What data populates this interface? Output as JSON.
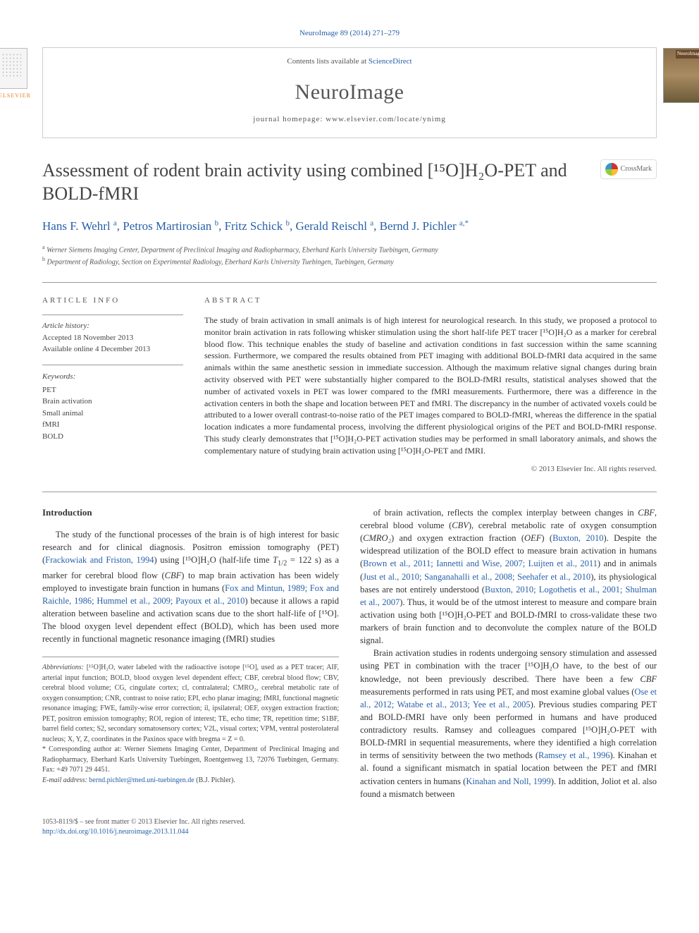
{
  "top_link": "NeuroImage 89 (2014) 271–279",
  "header": {
    "contents_prefix": "Contents lists available at ",
    "contents_link": "ScienceDirect",
    "journal": "NeuroImage",
    "homepage_label": "journal homepage: ",
    "homepage_url": "www.elsevier.com/locate/ynimg",
    "publisher_logo_label": "ELSEVIER",
    "cover_label": "NeuroImage"
  },
  "article": {
    "title": "Assessment of rodent brain activity using combined [¹⁵O]H₂O-PET and BOLD-fMRI",
    "crossmark": "CrossMark",
    "authors_html": "Hans F. Wehrl <sup>a</sup>, Petros Martirosian <sup>b</sup>, Fritz Schick <sup>b</sup>, Gerald Reischl <sup>a</sup>, Bernd J. Pichler <sup>a,*</sup>",
    "affiliations": [
      {
        "sup": "a",
        "text": "Werner Siemens Imaging Center, Department of Preclinical Imaging and Radiopharmacy, Eberhard Karls University Tuebingen, Germany"
      },
      {
        "sup": "b",
        "text": "Department of Radiology, Section on Experimental Radiology, Eberhard Karls University Tuebingen, Tuebingen, Germany"
      }
    ]
  },
  "meta": {
    "info_heading": "ARTICLE INFO",
    "abstract_heading": "ABSTRACT",
    "history_label": "Article history:",
    "history_lines": [
      "Accepted 18 November 2013",
      "Available online 4 December 2013"
    ],
    "keywords_label": "Keywords:",
    "keywords": [
      "PET",
      "Brain activation",
      "Small animal",
      "fMRI",
      "BOLD"
    ]
  },
  "abstract": {
    "text": "The study of brain activation in small animals is of high interest for neurological research. In this study, we proposed a protocol to monitor brain activation in rats following whisker stimulation using the short half-life PET tracer [¹⁵O]H₂O as a marker for cerebral blood flow. This technique enables the study of baseline and activation conditions in fast succession within the same scanning session. Furthermore, we compared the results obtained from PET imaging with additional BOLD-fMRI data acquired in the same animals within the same anesthetic session in immediate succession. Although the maximum relative signal changes during brain activity observed with PET were substantially higher compared to the BOLD-fMRI results, statistical analyses showed that the number of activated voxels in PET was lower compared to the fMRI measurements. Furthermore, there was a difference in the activation centers in both the shape and location between PET and fMRI. The discrepancy in the number of activated voxels could be attributed to a lower overall contrast-to-noise ratio of the PET images compared to BOLD-fMRI, whereas the difference in the spatial location indicates a more fundamental process, involving the different physiological origins of the PET and BOLD-fMRI response. This study clearly demonstrates that [¹⁵O]H₂O-PET activation studies may be performed in small laboratory animals, and shows the complementary nature of studying brain activation using [¹⁵O]H₂O-PET and fMRI.",
    "copyright": "© 2013 Elsevier Inc. All rights reserved."
  },
  "body": {
    "heading": "Introduction",
    "para1": "The study of the functional processes of the brain is of high interest for basic research and for clinical diagnosis. Positron emission tomography (PET) (Frackowiak and Friston, 1994) using [¹⁵O]H₂O (half-life time T₁/₂ = 122 s) as a marker for cerebral blood flow (CBF) to map brain activation has been widely employed to investigate brain function in humans (Fox and Mintun, 1989; Fox and Raichle, 1986; Hummel et al., 2009; Payoux et al., 2010) because it allows a rapid alteration between baseline and activation scans due to the short half-life of [¹⁵O]. The blood oxygen level dependent effect (BOLD), which has been used more recently in functional magnetic resonance imaging (fMRI) studies",
    "para2": "of brain activation, reflects the complex interplay between changes in CBF, cerebral blood volume (CBV), cerebral metabolic rate of oxygen consumption (CMRO₂) and oxygen extraction fraction (OEF) (Buxton, 2010). Despite the widespread utilization of the BOLD effect to measure brain activation in humans (Brown et al., 2011; Iannetti and Wise, 2007; Luijten et al., 2011) and in animals (Just et al., 2010; Sanganahalli et al., 2008; Seehafer et al., 2010), its physiological bases are not entirely understood (Buxton, 2010; Logothetis et al., 2001; Shulman et al., 2007). Thus, it would be of the utmost interest to measure and compare brain activation using both [¹⁵O]H₂O-PET and BOLD-fMRI to cross-validate these two markers of brain function and to deconvolute the complex nature of the BOLD signal.",
    "para3": "Brain activation studies in rodents undergoing sensory stimulation and assessed using PET in combination with the tracer [¹⁵O]H₂O have, to the best of our knowledge, not been previously described. There have been a few CBF measurements performed in rats using PET, and most examine global values (Ose et al., 2012; Watabe et al., 2013; Yee et al., 2005). Previous studies comparing PET and BOLD-fMRI have only been performed in humans and have produced contradictory results. Ramsey and colleagues compared [¹⁵O]H₂O-PET with BOLD-fMRI in sequential measurements, where they identified a high correlation in terms of sensitivity between the two methods (Ramsey et al., 1996). Kinahan et al. found a significant mismatch in spatial location between the PET and fMRI activation centers in humans (Kinahan and Noll, 1999). In addition, Joliot et al. also found a mismatch between"
  },
  "footnotes": {
    "abbrev_label": "Abbreviations:",
    "abbrev_text": " [¹⁵O]H₂O, water labeled with the radioactive isotope [¹⁵O], used as a PET tracer; AIF, arterial input function; BOLD, blood oxygen level dependent effect; CBF, cerebral blood flow; CBV, cerebral blood volume; CG, cingulate cortex; cl, contralateral; CMRO₂, cerebral metabolic rate of oxygen consumption; CNR, contrast to noise ratio; EPI, echo planar imaging; fMRI, functional magnetic resonance imaging; FWE, family-wise error correction; il, ipsilateral; OEF, oxygen extraction fraction; PET, positron emission tomography; ROI, region of interest; TE, echo time; TR, repetition time; S1BF, barrel field cortex; S2, secondary somatosensory cortex; V2L, visual cortex; VPM, ventral posterolateral nucleus; X, Y, Z, coordinates in the Paxinos space with bregma = Z = 0.",
    "corresp_marker": "*",
    "corresp_text": " Corresponding author at: Werner Siemens Imaging Center, Department of Preclinical Imaging and Radiopharmacy, Eberhard Karls University Tuebingen, Roentgenweg 13, 72076 Tuebingen, Germany. Fax: +49 7071 29 4451.",
    "email_label": "E-mail address: ",
    "email": "bernd.pichler@med.uni-tuebingen.de",
    "email_suffix": " (B.J. Pichler)."
  },
  "footer": {
    "issn_line": "1053-8119/$ – see front matter © 2013 Elsevier Inc. All rights reserved.",
    "doi": "http://dx.doi.org/10.1016/j.neuroimage.2013.11.044"
  },
  "colors": {
    "link": "#2860a8",
    "text": "#333333",
    "muted": "#555555",
    "rule": "#999999"
  }
}
